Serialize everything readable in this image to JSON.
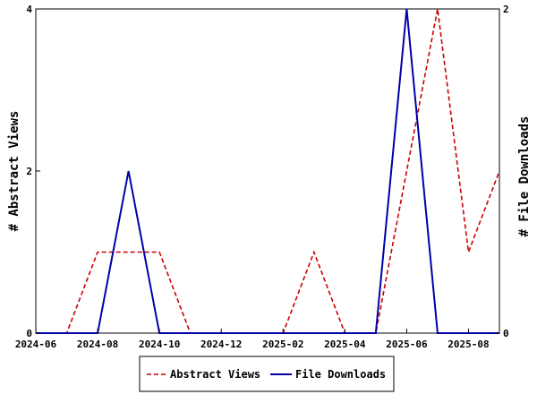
{
  "chart_data": {
    "type": "line",
    "x": [
      "2024-06",
      "2024-07",
      "2024-08",
      "2024-09",
      "2024-10",
      "2024-11",
      "2024-12",
      "2025-01",
      "2025-02",
      "2025-03",
      "2025-04",
      "2025-05",
      "2025-06",
      "2025-07",
      "2025-08",
      "2025-09"
    ],
    "x_tick_labels": [
      "2024-06",
      "2024-08",
      "2024-10",
      "2024-12",
      "2025-02",
      "2025-04",
      "2025-06",
      "2025-08"
    ],
    "ylabel": "# Abstract Views",
    "ylabel_right": "# File Downloads",
    "ylim": [
      0,
      4
    ],
    "ylim_right": [
      0,
      2
    ],
    "y_ticks": [
      0,
      2,
      4
    ],
    "y_ticks_right": [
      0,
      2
    ],
    "grid": false,
    "legend_position": "bottom-center",
    "series": [
      {
        "name": "Abstract Views",
        "axis": "left",
        "color": "#cc0000",
        "style": "dashed",
        "values": [
          0,
          0,
          1,
          1,
          1,
          0,
          0,
          0,
          0,
          1,
          0,
          0,
          2,
          4,
          1,
          2
        ]
      },
      {
        "name": "File Downloads",
        "axis": "right",
        "color": "#0000aa",
        "style": "solid",
        "values": [
          0,
          0,
          0,
          1,
          0,
          0,
          0,
          0,
          0,
          0,
          0,
          0,
          2,
          0,
          0,
          0
        ]
      }
    ]
  }
}
